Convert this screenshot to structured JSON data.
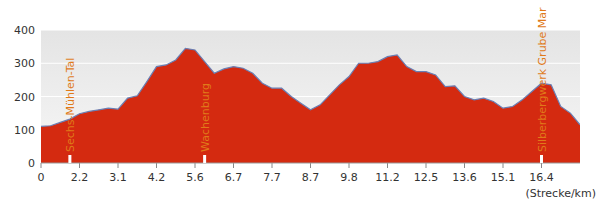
{
  "chart_data": {
    "type": "area",
    "x_label": "(Strecke/km)",
    "categories": [
      "0",
      null,
      null,
      null,
      "2.2",
      null,
      null,
      null,
      "3.1",
      null,
      null,
      null,
      "4.2",
      null,
      null,
      null,
      "5.6",
      null,
      null,
      null,
      "6.7",
      null,
      null,
      null,
      "7.7",
      null,
      null,
      null,
      "8.7",
      null,
      null,
      null,
      "9.8",
      null,
      null,
      null,
      "11.2",
      null,
      null,
      null,
      "12.5",
      null,
      null,
      null,
      "13.6",
      null,
      null,
      null,
      "15.1",
      null,
      null,
      null,
      "16.4",
      null,
      null,
      null,
      null
    ],
    "values": [
      110,
      112,
      122,
      132,
      148,
      155,
      160,
      165,
      162,
      195,
      202,
      245,
      290,
      295,
      310,
      345,
      340,
      305,
      270,
      283,
      290,
      285,
      270,
      240,
      225,
      225,
      200,
      180,
      160,
      175,
      205,
      235,
      260,
      300,
      300,
      305,
      320,
      325,
      290,
      275,
      275,
      265,
      230,
      232,
      200,
      190,
      195,
      185,
      165,
      170,
      190,
      215,
      240,
      235,
      170,
      150,
      115
    ],
    "color": "#d42a10",
    "ylim": [
      0,
      400
    ],
    "yticks": [
      0,
      100,
      200,
      300,
      400
    ],
    "grid": true,
    "annotations": [
      {
        "text": "Sechs-Mühlen-Tal",
        "index": 3
      },
      {
        "text": "Wachenburg",
        "index": 17
      },
      {
        "text": "Silberbergwerk Grube Mar",
        "index": 52
      }
    ]
  }
}
